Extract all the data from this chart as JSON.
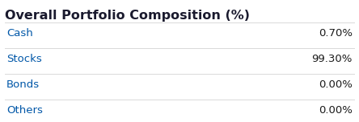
{
  "title": "Overall Portfolio Composition (%)",
  "rows": [
    {
      "label": "Cash",
      "value": "0.70%"
    },
    {
      "label": "Stocks",
      "value": "99.30%"
    },
    {
      "label": "Bonds",
      "value": "0.00%"
    },
    {
      "label": "Others",
      "value": "0.00%"
    }
  ],
  "title_fontsize": 11.5,
  "label_fontsize": 9.5,
  "value_fontsize": 9.5,
  "title_color": "#1a1a2e",
  "label_color": "#0057a8",
  "value_color": "#1a1a1a",
  "bg_color": "#ffffff",
  "divider_color": "#d9d9d9",
  "title_bold": true
}
